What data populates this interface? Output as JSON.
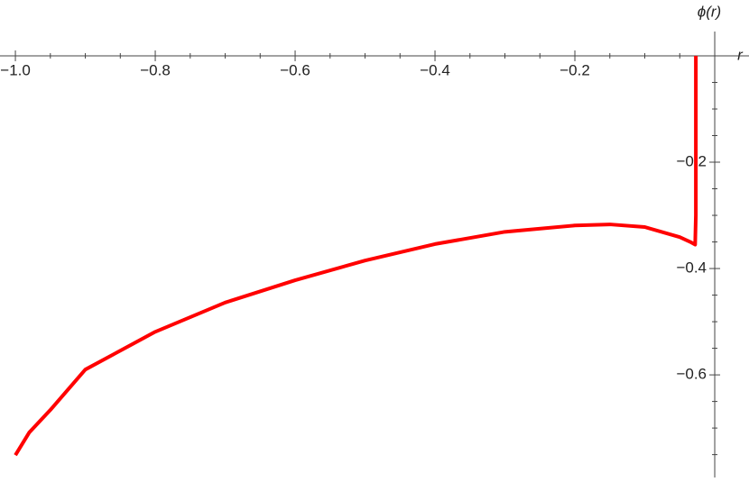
{
  "chart_data": {
    "type": "line",
    "xlabel": "r",
    "ylabel": "ϕ(r)",
    "x": [
      -1.0,
      -0.98,
      -0.95,
      -0.9,
      -0.8,
      -0.7,
      -0.6,
      -0.5,
      -0.4,
      -0.3,
      -0.2,
      -0.15,
      -0.1,
      -0.05,
      -0.035,
      -0.028,
      -0.027,
      -0.027
    ],
    "series": [
      {
        "name": "ϕ(r)",
        "color": "#ff0000",
        "values": [
          -0.751,
          -0.708,
          -0.666,
          -0.59,
          -0.519,
          -0.464,
          -0.422,
          -0.385,
          -0.354,
          -0.331,
          -0.319,
          -0.317,
          -0.322,
          -0.341,
          -0.35,
          -0.355,
          -0.3,
          0
        ]
      }
    ],
    "xlim": [
      -1.022,
      0.049
    ],
    "ylim": [
      -0.793,
      0.105
    ],
    "xticks": [
      {
        "value": -1.0,
        "label": "−1.0"
      },
      {
        "value": -0.8,
        "label": "−0.8"
      },
      {
        "value": -0.6,
        "label": "−0.6"
      },
      {
        "value": -0.4,
        "label": "−0.4"
      },
      {
        "value": -0.2,
        "label": "−0.2"
      }
    ],
    "yticks": [
      {
        "value": -0.2,
        "label": "−0.2"
      },
      {
        "value": -0.4,
        "label": "−0.4"
      },
      {
        "value": -0.6,
        "label": "−0.6"
      }
    ],
    "xminorticks": [
      -0.95,
      -0.9,
      -0.85,
      -0.75,
      -0.7,
      -0.65,
      -0.55,
      -0.5,
      -0.45,
      -0.35,
      -0.3,
      -0.25,
      -0.15,
      -0.1,
      -0.05
    ],
    "yminorticks": [
      -0.05,
      -0.1,
      -0.15,
      -0.25,
      -0.3,
      -0.35,
      -0.45,
      -0.5,
      -0.55,
      -0.65,
      -0.7,
      -0.75
    ]
  }
}
